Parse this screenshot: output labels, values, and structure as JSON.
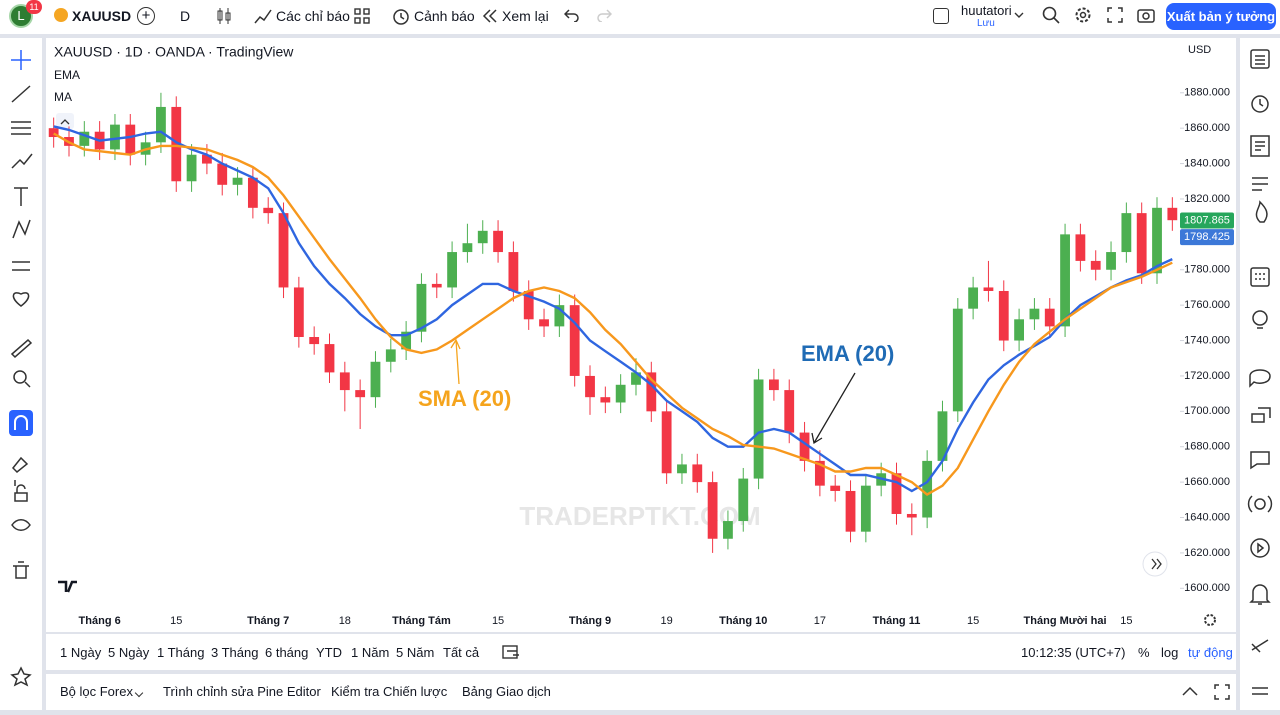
{
  "toolbar": {
    "avatar": "L",
    "badge": "11",
    "symbol": "XAUUSD",
    "interval": "D",
    "indicators": "Các chỉ báo",
    "alerts": "Cảnh báo",
    "replay": "Xem lại",
    "user": "huutatori",
    "save": "Lưu",
    "publish": "Xuất bản ý tưởng"
  },
  "currency": "USD",
  "timeframes": [
    "1 Ngày",
    "5 Ngày",
    "1 Tháng",
    "3 Tháng",
    "6 tháng",
    "YTD",
    "1 Năm",
    "5 Năm",
    "Tất cả"
  ],
  "clock": "10:12:35 (UTC+7)",
  "scale_options": [
    "%",
    "log",
    "tự động"
  ],
  "bottom_tabs": [
    "Bộ lọc Forex",
    "Trình chỉnh sửa Pine Editor",
    "Kiểm tra Chiến lược",
    "Bảng Giao dịch"
  ],
  "chart_data": {
    "type": "candlestick",
    "title": "XAUUSD · 1D · OANDA · TradingView",
    "watermark": "TRADERPTKT.COM",
    "categories": [
      null,
      null,
      null,
      "Tháng 6",
      null,
      null,
      null,
      null,
      "15",
      null,
      null,
      null,
      null,
      null,
      "Tháng 7",
      null,
      null,
      null,
      null,
      "18",
      null,
      null,
      null,
      null,
      "Tháng Tám",
      null,
      null,
      null,
      null,
      "15",
      null,
      null,
      null,
      null,
      null,
      "Tháng 9",
      null,
      null,
      null,
      null,
      "19",
      null,
      null,
      null,
      null,
      "Tháng 10",
      null,
      null,
      null,
      null,
      "17",
      null,
      null,
      null,
      null,
      "Tháng 11",
      null,
      null,
      null,
      null,
      "15",
      null,
      null,
      null,
      null,
      null,
      "Tháng Mười hai",
      null,
      null,
      null,
      "15",
      null,
      null,
      null
    ],
    "open": [
      1860,
      1855,
      1850,
      1858,
      1848,
      1862,
      1845,
      1852,
      1872,
      1830,
      1845,
      1840,
      1828,
      1832,
      1815,
      1812,
      1770,
      1742,
      1738,
      1722,
      1712,
      1708,
      1728,
      1735,
      1745,
      1772,
      1770,
      1790,
      1795,
      1802,
      1790,
      1768,
      1752,
      1748,
      1760,
      1720,
      1708,
      1705,
      1715,
      1722,
      1700,
      1665,
      1670,
      1660,
      1628,
      1638,
      1662,
      1718,
      1712,
      1688,
      1672,
      1658,
      1655,
      1632,
      1658,
      1665,
      1642,
      1640,
      1672,
      1700,
      1758,
      1770,
      1768,
      1740,
      1752,
      1758,
      1748,
      1800,
      1785,
      1780,
      1790,
      1812,
      1778,
      1815
    ],
    "high": [
      1866,
      1861,
      1864,
      1864,
      1868,
      1868,
      1858,
      1880,
      1878,
      1851,
      1851,
      1846,
      1838,
      1838,
      1821,
      1818,
      1776,
      1748,
      1744,
      1728,
      1718,
      1734,
      1741,
      1751,
      1778,
      1778,
      1796,
      1806,
      1808,
      1808,
      1796,
      1774,
      1758,
      1766,
      1766,
      1726,
      1714,
      1721,
      1730,
      1728,
      1706,
      1676,
      1676,
      1666,
      1644,
      1668,
      1724,
      1724,
      1718,
      1694,
      1678,
      1664,
      1661,
      1664,
      1671,
      1671,
      1648,
      1678,
      1706,
      1764,
      1776,
      1785,
      1774,
      1758,
      1764,
      1764,
      1806,
      1806,
      1791,
      1796,
      1818,
      1818,
      1821,
      1821
    ],
    "low": [
      1849,
      1844,
      1844,
      1842,
      1842,
      1839,
      1839,
      1846,
      1824,
      1824,
      1834,
      1822,
      1822,
      1809,
      1806,
      1764,
      1736,
      1732,
      1716,
      1700,
      1690,
      1702,
      1722,
      1729,
      1739,
      1764,
      1764,
      1784,
      1789,
      1784,
      1762,
      1746,
      1742,
      1742,
      1714,
      1698,
      1699,
      1699,
      1709,
      1694,
      1659,
      1659,
      1654,
      1620,
      1622,
      1632,
      1656,
      1706,
      1682,
      1666,
      1652,
      1649,
      1626,
      1626,
      1652,
      1636,
      1630,
      1634,
      1666,
      1694,
      1752,
      1762,
      1734,
      1734,
      1746,
      1742,
      1742,
      1779,
      1774,
      1774,
      1784,
      1772,
      1772,
      1802
    ],
    "close": [
      1855,
      1850,
      1858,
      1848,
      1862,
      1845,
      1852,
      1872,
      1830,
      1845,
      1840,
      1828,
      1832,
      1815,
      1812,
      1770,
      1742,
      1738,
      1722,
      1712,
      1708,
      1728,
      1735,
      1745,
      1772,
      1770,
      1790,
      1795,
      1802,
      1790,
      1768,
      1752,
      1748,
      1760,
      1720,
      1708,
      1705,
      1715,
      1722,
      1700,
      1665,
      1670,
      1660,
      1628,
      1638,
      1662,
      1718,
      1712,
      1688,
      1672,
      1658,
      1655,
      1632,
      1658,
      1665,
      1642,
      1640,
      1672,
      1700,
      1758,
      1770,
      1768,
      1740,
      1752,
      1758,
      1748,
      1800,
      1785,
      1780,
      1790,
      1812,
      1778,
      1815,
      1808
    ],
    "up_color": "#4caf50",
    "down_color": "#f23645",
    "series": [
      {
        "name": "EMA",
        "color": "#2f66e0",
        "values": [
          1861,
          1859,
          1856,
          1853,
          1854,
          1855,
          1857,
          1858,
          1852,
          1848,
          1845,
          1840,
          1836,
          1832,
          1826,
          1812,
          1795,
          1782,
          1772,
          1764,
          1755,
          1748,
          1743,
          1743,
          1747,
          1752,
          1760,
          1766,
          1772,
          1772,
          1768,
          1765,
          1762,
          1758,
          1750,
          1740,
          1734,
          1728,
          1722,
          1715,
          1706,
          1700,
          1694,
          1685,
          1680,
          1680,
          1688,
          1690,
          1688,
          1682,
          1676,
          1670,
          1664,
          1664,
          1662,
          1660,
          1655,
          1660,
          1672,
          1690,
          1705,
          1718,
          1726,
          1732,
          1737,
          1742,
          1752,
          1760,
          1765,
          1770,
          1774,
          1777,
          1782,
          1786
        ]
      },
      {
        "name": "MA",
        "color": "#f7981d",
        "values": [
          1857,
          1852,
          1848,
          1847,
          1846,
          1845,
          1848,
          1850,
          1850,
          1849,
          1848,
          1845,
          1842,
          1838,
          1832,
          1822,
          1810,
          1798,
          1786,
          1775,
          1764,
          1752,
          1742,
          1735,
          1733,
          1735,
          1740,
          1746,
          1752,
          1758,
          1764,
          1768,
          1770,
          1768,
          1764,
          1756,
          1746,
          1738,
          1728,
          1718,
          1710,
          1702,
          1696,
          1690,
          1686,
          1681,
          1680,
          1679,
          1676,
          1673,
          1670,
          1666,
          1666,
          1668,
          1668,
          1664,
          1660,
          1653,
          1658,
          1668,
          1684,
          1700,
          1715,
          1728,
          1738,
          1745,
          1752,
          1758,
          1764,
          1770,
          1773,
          1776,
          1780,
          1784
        ]
      }
    ],
    "annotations": [
      {
        "text": "SMA (20)",
        "color": "#f5a41d"
      },
      {
        "text": "EMA (20)",
        "color": "#1f6bb5"
      }
    ],
    "price_labels": [
      {
        "value": 1807.865,
        "color": "#26a65b"
      },
      {
        "value": 1798.425,
        "color": "#3c78d8"
      }
    ],
    "ylim": [
      1590,
      1907
    ],
    "yticks": [
      {
        "value": 1600,
        "label": "1600.000"
      },
      {
        "value": 1620,
        "label": "1620.000"
      },
      {
        "value": 1640,
        "label": "1640.000"
      },
      {
        "value": 1660,
        "label": "1660.000"
      },
      {
        "value": 1680,
        "label": "1680.000"
      },
      {
        "value": 1700,
        "label": "1700.000"
      },
      {
        "value": 1720,
        "label": "1720.000"
      },
      {
        "value": 1740,
        "label": "1740.000"
      },
      {
        "value": 1760,
        "label": "1760.000"
      },
      {
        "value": 1780,
        "label": "1780.000"
      },
      {
        "value": 1800,
        "label": "1800.000"
      },
      {
        "value": 1820,
        "label": "1820.000"
      },
      {
        "value": 1840,
        "label": "1840.000"
      },
      {
        "value": 1860,
        "label": "1860.000"
      },
      {
        "value": 1880,
        "label": "1880.000"
      }
    ],
    "grid": false
  }
}
